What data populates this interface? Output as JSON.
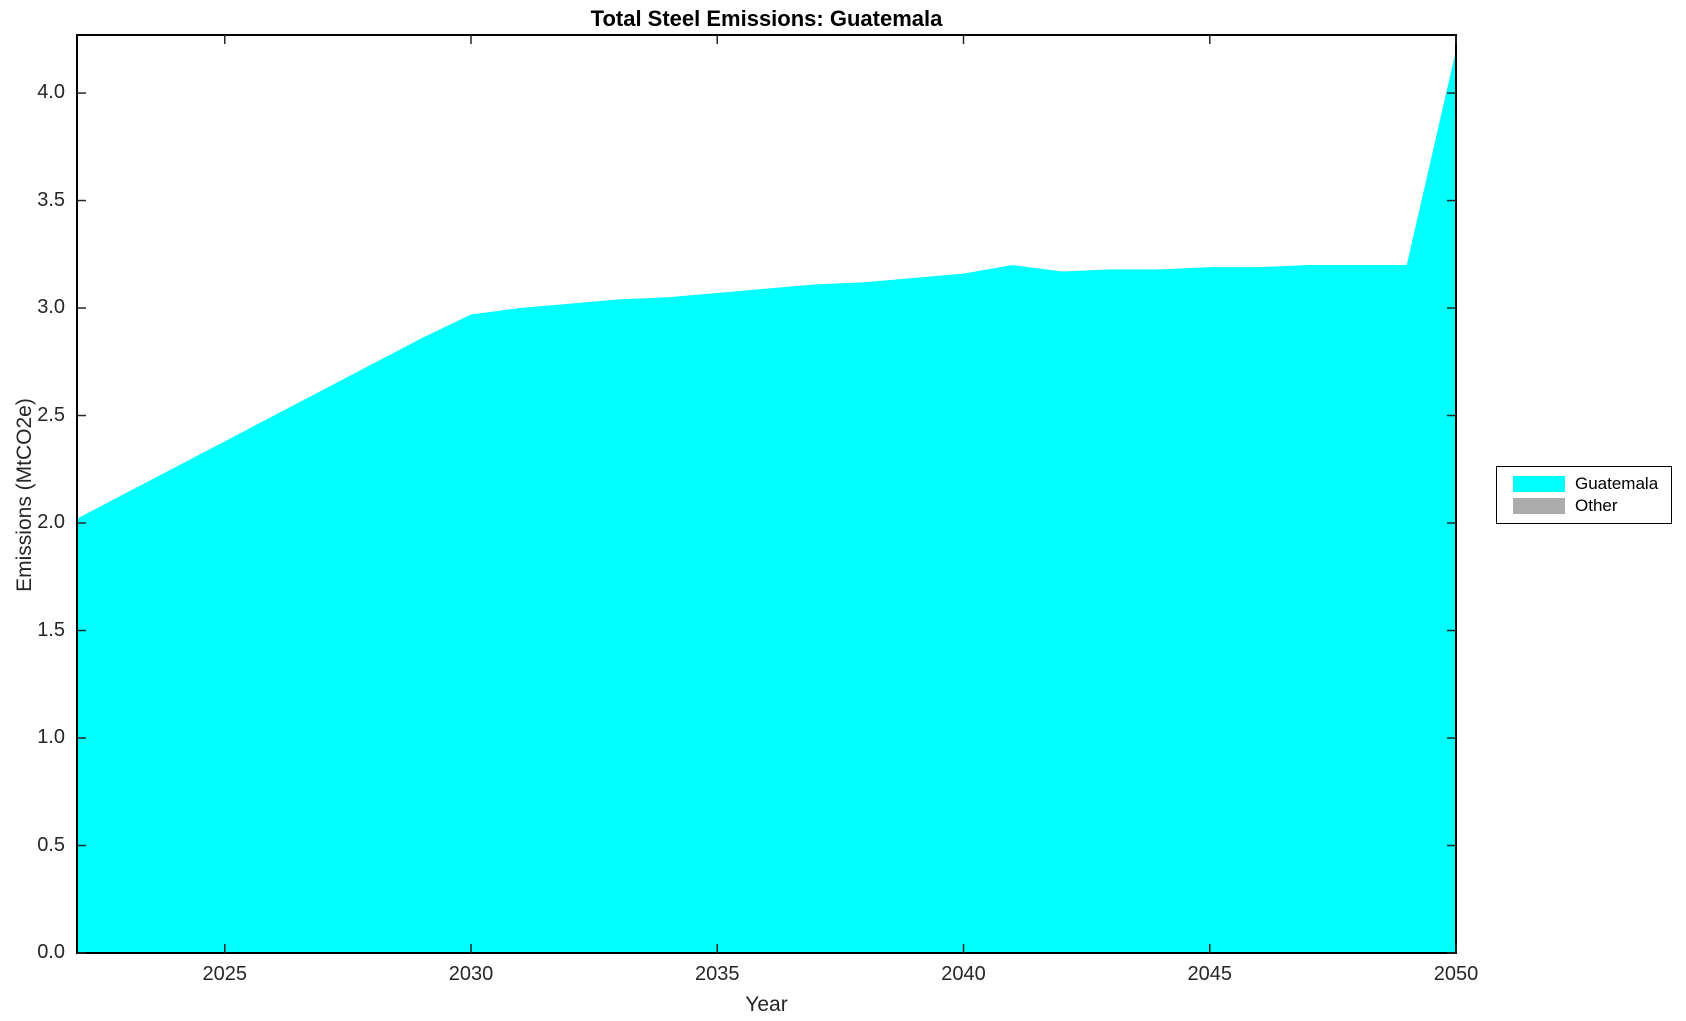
{
  "chart_data": {
    "type": "area",
    "title": "Total Steel Emissions: Guatemala",
    "xlabel": "Year",
    "ylabel": "Emissions (MtCO2e)",
    "x": [
      2022,
      2023,
      2024,
      2025,
      2026,
      2027,
      2028,
      2029,
      2030,
      2031,
      2032,
      2033,
      2034,
      2035,
      2036,
      2037,
      2038,
      2039,
      2040,
      2041,
      2042,
      2043,
      2044,
      2045,
      2046,
      2047,
      2048,
      2049,
      2050
    ],
    "series": [
      {
        "name": "Guatemala",
        "color": "#00FFFF",
        "values": [
          2.02,
          2.14,
          2.26,
          2.38,
          2.5,
          2.62,
          2.74,
          2.86,
          2.97,
          3.0,
          3.02,
          3.04,
          3.05,
          3.07,
          3.09,
          3.11,
          3.12,
          3.14,
          3.16,
          3.2,
          3.17,
          3.18,
          3.18,
          3.19,
          3.19,
          3.2,
          3.2,
          3.2,
          4.2
        ]
      },
      {
        "name": "Other",
        "color": "#ABABAB",
        "values": [
          0,
          0,
          0,
          0,
          0,
          0,
          0,
          0,
          0,
          0,
          0,
          0,
          0,
          0,
          0,
          0,
          0,
          0,
          0,
          0,
          0,
          0,
          0,
          0,
          0,
          0,
          0,
          0,
          0
        ]
      }
    ],
    "xlim": [
      2022,
      2050
    ],
    "ylim": [
      0,
      4.27
    ],
    "xticks": [
      2025,
      2030,
      2035,
      2040,
      2045,
      2050
    ],
    "xtick_labels": [
      "2025",
      "2030",
      "2035",
      "2040",
      "2045",
      "2050"
    ],
    "yticks": [
      0,
      0.5,
      1.0,
      1.5,
      2.0,
      2.5,
      3.0,
      3.5,
      4.0
    ],
    "ytick_labels": [
      "0.0",
      "0.5",
      "1.0",
      "1.5",
      "2.0",
      "2.5",
      "3.0",
      "3.5",
      "4.0"
    ],
    "grid": false,
    "legend_position": "outside-right",
    "legend_entries": [
      "Guatemala",
      "Other"
    ],
    "axis_color": "#262626",
    "box_color": "#000000",
    "background": "#FFFFFF"
  }
}
